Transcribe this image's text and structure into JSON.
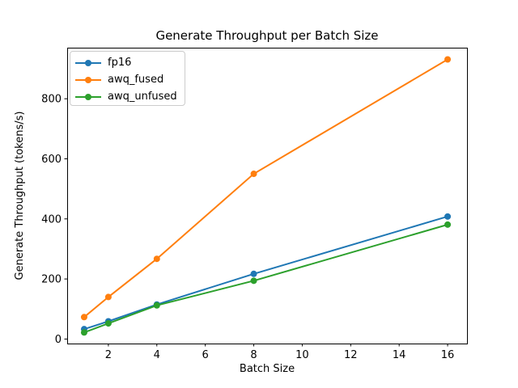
{
  "chart_data": {
    "type": "line",
    "title": "Generate Throughput per Batch Size",
    "xlabel": "Batch Size",
    "ylabel": "Generate Throughput (tokens/s)",
    "x": [
      1,
      2,
      4,
      8,
      16
    ],
    "series": [
      {
        "name": "fp16",
        "color": "#1f77b4",
        "values": [
          33,
          59,
          115,
          217,
          408
        ]
      },
      {
        "name": "awq_fused",
        "color": "#ff7f0e",
        "values": [
          73,
          140,
          267,
          550,
          931
        ]
      },
      {
        "name": "awq_unfused",
        "color": "#2ca02c",
        "values": [
          22,
          52,
          112,
          194,
          381
        ]
      }
    ],
    "xticks": [
      2,
      4,
      6,
      8,
      10,
      12,
      14,
      16
    ],
    "yticks": [
      0,
      200,
      400,
      600,
      800
    ],
    "xlim": [
      0.3,
      16.8
    ],
    "ylim": [
      -15,
      970
    ],
    "grid": false,
    "legend_position": "upper left",
    "marker": "circle",
    "line_width": 2,
    "marker_radius": 4,
    "spine_color": "#000000",
    "background_color": "#ffffff"
  }
}
